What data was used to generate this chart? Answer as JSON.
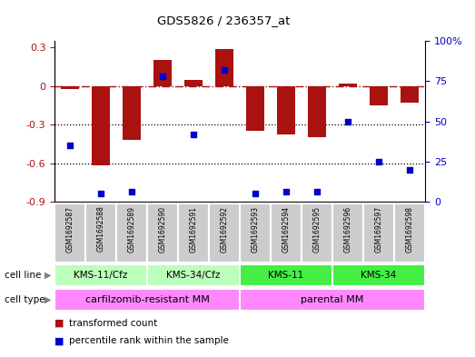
{
  "title": "GDS5826 / 236357_at",
  "samples": [
    "GSM1692587",
    "GSM1692588",
    "GSM1692589",
    "GSM1692590",
    "GSM1692591",
    "GSM1692592",
    "GSM1692593",
    "GSM1692594",
    "GSM1692595",
    "GSM1692596",
    "GSM1692597",
    "GSM1692598"
  ],
  "transformed_count": [
    -0.02,
    -0.62,
    -0.42,
    0.2,
    0.05,
    0.29,
    -0.35,
    -0.38,
    -0.4,
    0.02,
    -0.15,
    -0.13
  ],
  "percentile_rank": [
    35,
    5,
    6,
    78,
    42,
    82,
    5,
    6,
    6,
    50,
    25,
    20
  ],
  "cell_lines": [
    {
      "label": "KMS-11/Cfz",
      "start": 0,
      "end": 3,
      "color": "#bbffbb"
    },
    {
      "label": "KMS-34/Cfz",
      "start": 3,
      "end": 6,
      "color": "#bbffbb"
    },
    {
      "label": "KMS-11",
      "start": 6,
      "end": 9,
      "color": "#44ee44"
    },
    {
      "label": "KMS-34",
      "start": 9,
      "end": 12,
      "color": "#44ee44"
    }
  ],
  "cell_types": [
    {
      "label": "carfilzomib-resistant MM",
      "start": 0,
      "end": 6,
      "color": "#ff88ff"
    },
    {
      "label": "parental MM",
      "start": 6,
      "end": 12,
      "color": "#ff88ff"
    }
  ],
  "bar_color": "#aa1111",
  "dot_color": "#0000cc",
  "ylim_left": [
    -0.9,
    0.35
  ],
  "ylim_right": [
    0,
    100
  ],
  "hline_y": 0,
  "dotted_lines": [
    -0.3,
    -0.6
  ],
  "right_ticks": [
    0,
    25,
    50,
    75,
    100
  ],
  "left_ticks": [
    -0.9,
    -0.6,
    -0.3,
    0,
    0.3
  ],
  "bar_width": 0.6,
  "sample_box_color": "#cccccc",
  "legend_items": [
    {
      "label": "transformed count",
      "color": "#aa1111"
    },
    {
      "label": "percentile rank within the sample",
      "color": "#0000cc"
    }
  ]
}
